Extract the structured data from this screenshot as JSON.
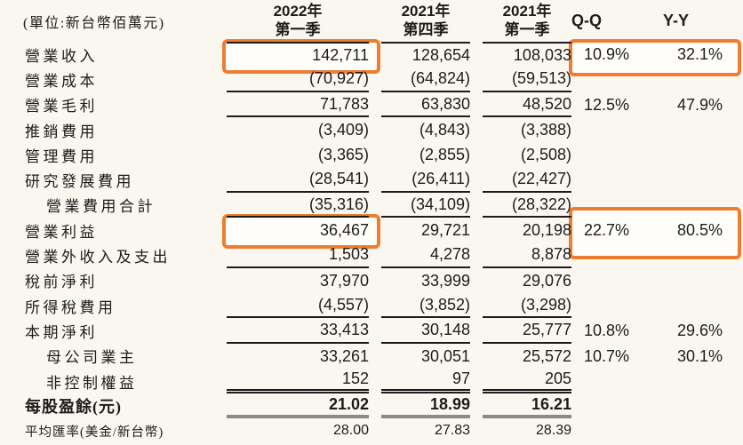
{
  "title": "quarterly-income-statement",
  "header": {
    "unit_label": "(單位:新台幣佰萬元)",
    "col1": {
      "line1": "2022年",
      "line2": "第一季"
    },
    "col2": {
      "line1": "2021年",
      "line2": "第四季"
    },
    "col3": {
      "line1": "2021年",
      "line2": "第一季"
    },
    "qq": "Q-Q",
    "yy": "Y-Y"
  },
  "rows": [
    {
      "label": "營業收入",
      "c1": "142,711",
      "c2": "128,654",
      "c3": "108,033",
      "qq": "10.9%",
      "yy": "32.1%",
      "indent": false,
      "top": true,
      "bottom": "",
      "bold": false,
      "small": false
    },
    {
      "label": "營業成本",
      "c1": "(70,927)",
      "c2": "(64,824)",
      "c3": "(59,513)",
      "qq": "",
      "yy": "",
      "indent": false,
      "top": false,
      "bottom": "single",
      "bold": false,
      "small": false
    },
    {
      "label": "營業毛利",
      "c1": "71,783",
      "c2": "63,830",
      "c3": "48,520",
      "qq": "12.5%",
      "yy": "47.9%",
      "indent": false,
      "top": false,
      "bottom": "single",
      "bold": false,
      "small": false
    },
    {
      "label": "推銷費用",
      "c1": "(3,409)",
      "c2": "(4,843)",
      "c3": "(3,388)",
      "qq": "",
      "yy": "",
      "indent": false,
      "top": false,
      "bottom": "",
      "bold": false,
      "small": false
    },
    {
      "label": "管理費用",
      "c1": "(3,365)",
      "c2": "(2,855)",
      "c3": "(2,508)",
      "qq": "",
      "yy": "",
      "indent": false,
      "top": false,
      "bottom": "",
      "bold": false,
      "small": false
    },
    {
      "label": "研究發展費用",
      "c1": "(28,541)",
      "c2": "(26,411)",
      "c3": "(22,427)",
      "qq": "",
      "yy": "",
      "indent": false,
      "top": false,
      "bottom": "single",
      "bold": false,
      "small": false
    },
    {
      "label": "營業費用合計",
      "c1": "(35,316)",
      "c2": "(34,109)",
      "c3": "(28,322)",
      "qq": "",
      "yy": "",
      "indent": true,
      "top": false,
      "bottom": "single",
      "bold": false,
      "small": false
    },
    {
      "label": "營業利益",
      "c1": "36,467",
      "c2": "29,721",
      "c3": "20,198",
      "qq": "22.7%",
      "yy": "80.5%",
      "indent": false,
      "top": false,
      "bottom": "",
      "bold": false,
      "small": false
    },
    {
      "label": "營業外收入及支出",
      "c1": "1,503",
      "c2": "4,278",
      "c3": "8,878",
      "qq": "",
      "yy": "",
      "indent": false,
      "top": false,
      "bottom": "single",
      "bold": false,
      "small": false
    },
    {
      "label": "稅前淨利",
      "c1": "37,970",
      "c2": "33,999",
      "c3": "29,076",
      "qq": "",
      "yy": "",
      "indent": false,
      "top": false,
      "bottom": "",
      "bold": false,
      "small": false
    },
    {
      "label": "所得稅費用",
      "c1": "(4,557)",
      "c2": "(3,852)",
      "c3": "(3,298)",
      "qq": "",
      "yy": "",
      "indent": false,
      "top": false,
      "bottom": "single",
      "bold": false,
      "small": false
    },
    {
      "label": "本期淨利",
      "c1": "33,413",
      "c2": "30,148",
      "c3": "25,777",
      "qq": "10.8%",
      "yy": "29.6%",
      "indent": false,
      "top": false,
      "bottom": "single",
      "bold": false,
      "small": false
    },
    {
      "label": "母公司業主",
      "c1": "33,261",
      "c2": "30,051",
      "c3": "25,572",
      "qq": "10.7%",
      "yy": "30.1%",
      "indent": true,
      "top": false,
      "bottom": "",
      "bold": false,
      "small": false
    },
    {
      "label": "非控制權益",
      "c1": "152",
      "c2": "97",
      "c3": "205",
      "qq": "",
      "yy": "",
      "indent": true,
      "top": false,
      "bottom": "double",
      "bold": false,
      "small": false
    },
    {
      "label": "每股盈餘(元)",
      "c1": "21.02",
      "c2": "18.99",
      "c3": "16.21",
      "qq": "",
      "yy": "",
      "indent": false,
      "top": false,
      "bottom": "thick",
      "bold": true,
      "small": false
    },
    {
      "label": "平均匯率(美金/新台幣)",
      "c1": "28.00",
      "c2": "27.83",
      "c3": "28.39",
      "qq": "",
      "yy": "",
      "indent": false,
      "top": false,
      "bottom": "",
      "bold": false,
      "small": true
    }
  ],
  "highlights": [
    {
      "name": "revenue-2022q1-box"
    },
    {
      "name": "revenue-growth-box"
    },
    {
      "name": "operating-income-2022q1-box"
    },
    {
      "name": "operating-income-growth-box"
    }
  ],
  "colors": {
    "accent_orange": "#ED7D31",
    "line_dark": "#1c1c1c",
    "thick_gray": "#8a8a8a",
    "background": "#FAF7F0"
  }
}
